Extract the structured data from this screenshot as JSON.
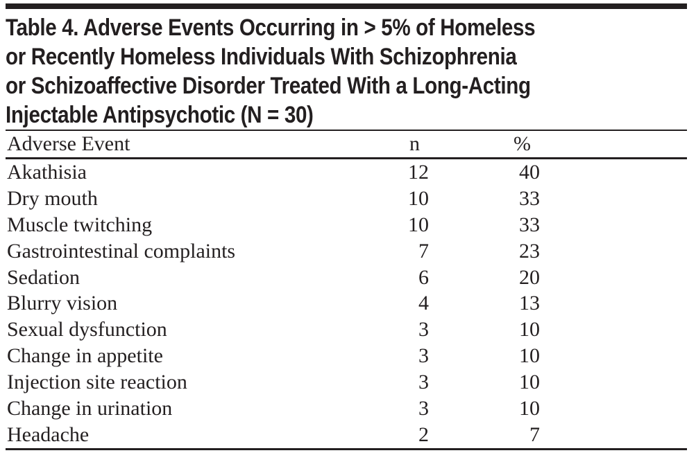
{
  "title_lines": [
    "Table 4. Adverse Events Occurring in > 5% of Homeless",
    "or Recently Homeless Individuals With Schizophrenia",
    "or Schizoaffective Disorder Treated With a Long-Acting",
    "Injectable Antipsychotic (N = 30)"
  ],
  "table": {
    "headers": {
      "event": "Adverse Event",
      "n": "n",
      "pct": "%"
    },
    "rows": [
      {
        "event": "Akathisia",
        "n": "12",
        "pct": "40"
      },
      {
        "event": "Dry mouth",
        "n": "10",
        "pct": "33"
      },
      {
        "event": "Muscle twitching",
        "n": "10",
        "pct": "33"
      },
      {
        "event": "Gastrointestinal complaints",
        "n": "7",
        "pct": "23"
      },
      {
        "event": "Sedation",
        "n": "6",
        "pct": "20"
      },
      {
        "event": "Blurry vision",
        "n": "4",
        "pct": "13"
      },
      {
        "event": "Sexual dysfunction",
        "n": "3",
        "pct": "10"
      },
      {
        "event": "Change in appetite",
        "n": "3",
        "pct": "10"
      },
      {
        "event": "Injection site reaction",
        "n": "3",
        "pct": "10"
      },
      {
        "event": "Change in urination",
        "n": "3",
        "pct": "10"
      },
      {
        "event": "Headache",
        "n": "2",
        "pct": "7"
      }
    ]
  },
  "colors": {
    "ink": "#231f20",
    "background": "#ffffff"
  }
}
